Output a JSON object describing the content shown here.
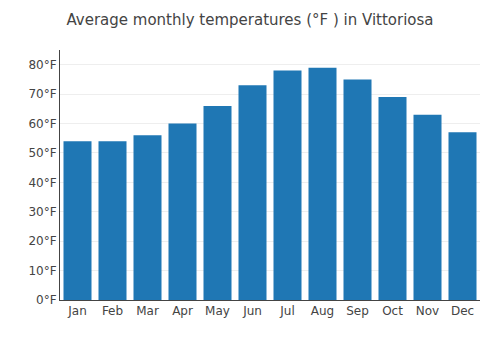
{
  "chart_data": {
    "type": "bar",
    "title": "Average monthly temperatures (°F ) in Vittoriosa",
    "categories": [
      "Jan",
      "Feb",
      "Mar",
      "Apr",
      "May",
      "Jun",
      "Jul",
      "Aug",
      "Sep",
      "Oct",
      "Nov",
      "Dec"
    ],
    "values": [
      54,
      54,
      56,
      60,
      66,
      73,
      78,
      79,
      75,
      69,
      63,
      57
    ],
    "ylim": [
      0,
      85
    ],
    "yticks": [
      {
        "value": 0,
        "label": "0°F"
      },
      {
        "value": 10,
        "label": "10°F"
      },
      {
        "value": 20,
        "label": "20°F"
      },
      {
        "value": 30,
        "label": "30°F"
      },
      {
        "value": 40,
        "label": "40°F"
      },
      {
        "value": 50,
        "label": "50°F"
      },
      {
        "value": 60,
        "label": "60°F"
      },
      {
        "value": 70,
        "label": "70°F"
      },
      {
        "value": 80,
        "label": "80°F"
      }
    ],
    "grid": true
  }
}
